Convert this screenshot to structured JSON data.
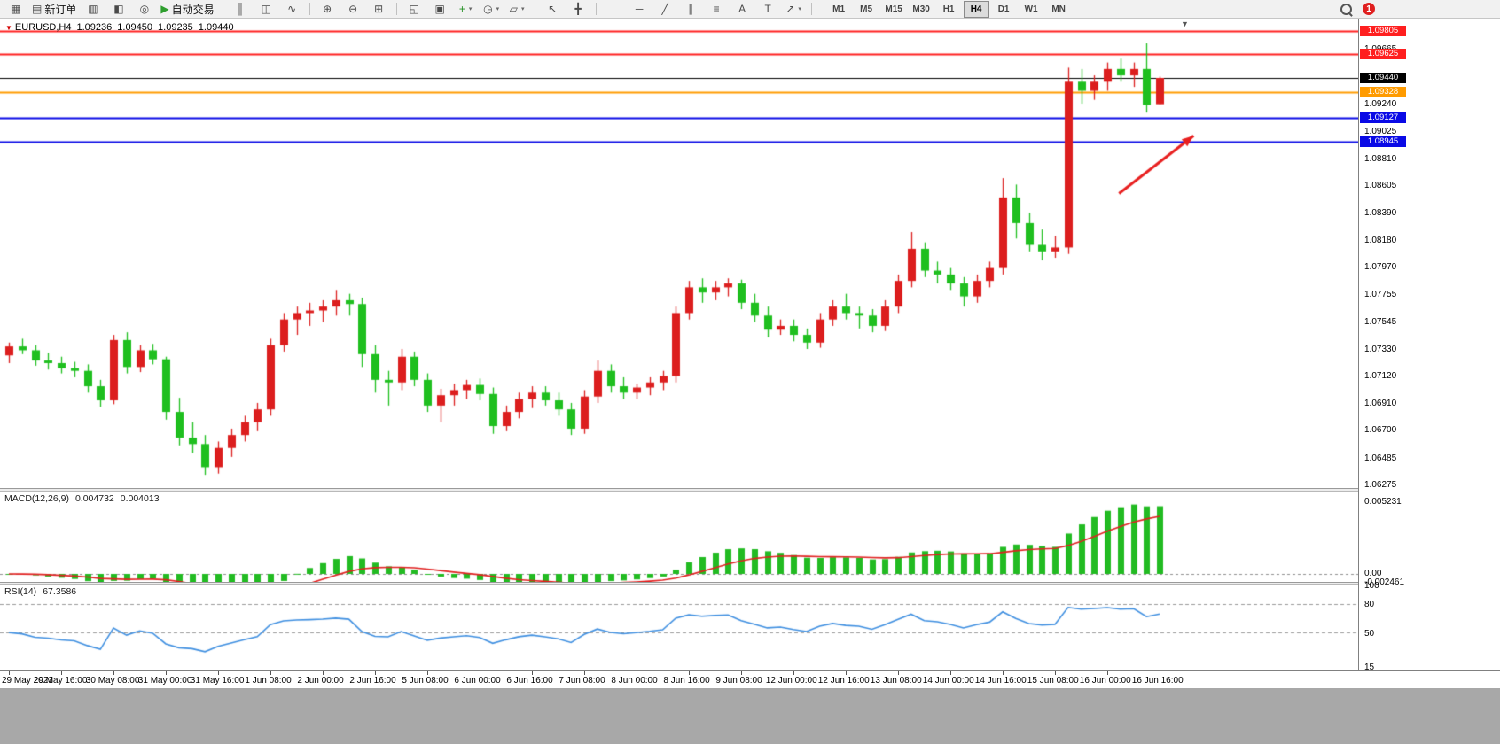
{
  "toolbar": {
    "items": [
      {
        "type": "icon",
        "name": "new-chart-icon",
        "glyph": "▦"
      },
      {
        "type": "button",
        "name": "new-order-button",
        "glyph": "▤",
        "label": "新订单"
      },
      {
        "type": "icon",
        "name": "market-watch-icon",
        "glyph": "▥"
      },
      {
        "type": "icon",
        "name": "data-window-icon",
        "glyph": "◧"
      },
      {
        "type": "icon",
        "name": "navigator-icon",
        "glyph": "◎"
      },
      {
        "type": "button",
        "name": "autotrade-button",
        "glyph": "▶",
        "glyph_color": "#2e9e2e",
        "label": "自动交易"
      },
      {
        "type": "sep"
      },
      {
        "type": "icon",
        "name": "bar-chart-icon",
        "glyph": "║"
      },
      {
        "type": "icon",
        "name": "candlestick-chart-icon",
        "glyph": "◫"
      },
      {
        "type": "icon",
        "name": "line-chart-icon",
        "glyph": "∿"
      },
      {
        "type": "sep"
      },
      {
        "type": "icon",
        "name": "zoom-in-icon",
        "glyph": "⊕"
      },
      {
        "type": "icon",
        "name": "zoom-out-icon",
        "glyph": "⊖"
      },
      {
        "type": "icon",
        "name": "tile-windows-icon",
        "glyph": "⊞"
      },
      {
        "type": "sep"
      },
      {
        "type": "icon",
        "name": "cascade-windows-icon",
        "glyph": "◱"
      },
      {
        "type": "icon",
        "name": "arrange-windows-icon",
        "glyph": "▣"
      },
      {
        "type": "icon",
        "name": "indicators-icon",
        "glyph": "+",
        "glyph_color": "#1e8e1e",
        "caret": true
      },
      {
        "type": "icon",
        "name": "periods-icon",
        "glyph": "◷",
        "caret": true
      },
      {
        "type": "icon",
        "name": "templates-icon",
        "glyph": "▱",
        "caret": true
      },
      {
        "type": "sep"
      },
      {
        "type": "icon",
        "name": "cursor-icon",
        "glyph": "↖"
      },
      {
        "type": "icon",
        "name": "crosshair-icon",
        "glyph": "╋"
      },
      {
        "type": "sep"
      },
      {
        "type": "icon",
        "name": "vertical-line-icon",
        "glyph": "│"
      },
      {
        "type": "icon",
        "name": "horizontal-line-icon",
        "glyph": "─"
      },
      {
        "type": "icon",
        "name": "trendline-icon",
        "glyph": "╱"
      },
      {
        "type": "icon",
        "name": "channel-icon",
        "glyph": "∥"
      },
      {
        "type": "icon",
        "name": "fibonacci-icon",
        "glyph": "≡"
      },
      {
        "type": "icon",
        "name": "text-icon",
        "glyph": "A"
      },
      {
        "type": "icon",
        "name": "text-label-icon",
        "glyph": "T"
      },
      {
        "type": "icon",
        "name": "arrows-icon",
        "glyph": "↗",
        "caret": true
      },
      {
        "type": "sep"
      }
    ],
    "timeframes": [
      "M1",
      "M5",
      "M15",
      "M30",
      "H1",
      "H4",
      "D1",
      "W1",
      "MN"
    ],
    "active_timeframe": "H4",
    "notification_count": "1"
  },
  "chart": {
    "symbol": "EURUSD,H4",
    "open": "1.09236",
    "high": "1.09450",
    "low": "1.09235",
    "close": "1.09440",
    "symbol_marker": "▼",
    "shift_marker": "▼"
  },
  "chart_data": {
    "type": "candlestick",
    "symbol": "EURUSD",
    "timeframe": "H4",
    "candles": [
      [
        1.0728,
        1.0738,
        1.0722,
        1.0735
      ],
      [
        1.0735,
        1.0741,
        1.0729,
        1.0732
      ],
      [
        1.0732,
        1.0736,
        1.072,
        1.0724
      ],
      [
        1.0724,
        1.073,
        1.0717,
        1.0722
      ],
      [
        1.0722,
        1.0727,
        1.0714,
        1.0718
      ],
      [
        1.0718,
        1.0723,
        1.0711,
        1.0716
      ],
      [
        1.0716,
        1.0721,
        1.0699,
        1.0704
      ],
      [
        1.0704,
        1.0709,
        1.0688,
        1.0693
      ],
      [
        1.0693,
        1.0744,
        1.069,
        1.074
      ],
      [
        1.074,
        1.0746,
        1.0714,
        1.0719
      ],
      [
        1.0719,
        1.0736,
        1.0715,
        1.0732
      ],
      [
        1.0732,
        1.0737,
        1.0721,
        1.0725
      ],
      [
        1.0725,
        1.0727,
        1.0678,
        1.0684
      ],
      [
        1.0684,
        1.0695,
        1.0658,
        1.0664
      ],
      [
        1.0664,
        1.0676,
        1.0652,
        1.0659
      ],
      [
        1.0659,
        1.0666,
        1.0635,
        1.0641
      ],
      [
        1.0641,
        1.0661,
        1.0636,
        1.0656
      ],
      [
        1.0656,
        1.0671,
        1.0649,
        1.0666
      ],
      [
        1.0666,
        1.0681,
        1.0661,
        1.0676
      ],
      [
        1.0676,
        1.0691,
        1.0669,
        1.0686
      ],
      [
        1.0686,
        1.0741,
        1.0681,
        1.0736
      ],
      [
        1.0736,
        1.0761,
        1.0731,
        1.0756
      ],
      [
        1.0756,
        1.0766,
        1.0744,
        1.0761
      ],
      [
        1.0761,
        1.0769,
        1.0751,
        1.0763
      ],
      [
        1.0763,
        1.0771,
        1.0754,
        1.0766
      ],
      [
        1.0766,
        1.0779,
        1.0759,
        1.0771
      ],
      [
        1.0771,
        1.0776,
        1.0759,
        1.0768
      ],
      [
        1.0768,
        1.0773,
        1.0719,
        1.0729
      ],
      [
        1.0729,
        1.0736,
        1.0699,
        1.0709
      ],
      [
        1.0709,
        1.0716,
        1.0689,
        1.0707
      ],
      [
        1.0707,
        1.0733,
        1.0701,
        1.0727
      ],
      [
        1.0727,
        1.0731,
        1.0704,
        1.0709
      ],
      [
        1.0709,
        1.0714,
        1.0684,
        1.0689
      ],
      [
        1.0689,
        1.0702,
        1.0676,
        1.0697
      ],
      [
        1.0697,
        1.0706,
        1.0689,
        1.0701
      ],
      [
        1.0701,
        1.0709,
        1.0694,
        1.0705
      ],
      [
        1.0705,
        1.071,
        1.0693,
        1.0698
      ],
      [
        1.0698,
        1.0703,
        1.0667,
        1.0673
      ],
      [
        1.0673,
        1.0689,
        1.0669,
        1.0684
      ],
      [
        1.0684,
        1.0699,
        1.0679,
        1.0694
      ],
      [
        1.0694,
        1.0704,
        1.0687,
        1.0699
      ],
      [
        1.0699,
        1.0704,
        1.0689,
        1.0693
      ],
      [
        1.0693,
        1.0699,
        1.0681,
        1.0686
      ],
      [
        1.0686,
        1.0691,
        1.0666,
        1.0671
      ],
      [
        1.0671,
        1.0701,
        1.0667,
        1.0696
      ],
      [
        1.0696,
        1.0724,
        1.0691,
        1.0716
      ],
      [
        1.0716,
        1.0721,
        1.0699,
        1.0704
      ],
      [
        1.0704,
        1.0711,
        1.0694,
        1.0699
      ],
      [
        1.0699,
        1.0706,
        1.0694,
        1.0703
      ],
      [
        1.0703,
        1.0711,
        1.0697,
        1.0707
      ],
      [
        1.0707,
        1.0716,
        1.0701,
        1.0712
      ],
      [
        1.0712,
        1.0766,
        1.0707,
        1.0761
      ],
      [
        1.0761,
        1.0786,
        1.0756,
        1.0781
      ],
      [
        1.0781,
        1.0788,
        1.0769,
        1.0777
      ],
      [
        1.0777,
        1.0786,
        1.0771,
        1.0781
      ],
      [
        1.0781,
        1.0788,
        1.0774,
        1.0784
      ],
      [
        1.0784,
        1.0787,
        1.0764,
        1.0769
      ],
      [
        1.0769,
        1.0776,
        1.0754,
        1.0759
      ],
      [
        1.0759,
        1.0766,
        1.0742,
        1.0748
      ],
      [
        1.0748,
        1.0756,
        1.0744,
        1.0751
      ],
      [
        1.0751,
        1.0756,
        1.0739,
        1.0744
      ],
      [
        1.0744,
        1.0749,
        1.0733,
        1.0738
      ],
      [
        1.0738,
        1.0761,
        1.0734,
        1.0756
      ],
      [
        1.0756,
        1.0771,
        1.0751,
        1.0766
      ],
      [
        1.0766,
        1.0776,
        1.0756,
        1.0761
      ],
      [
        1.0761,
        1.0766,
        1.0749,
        1.0759
      ],
      [
        1.0759,
        1.0764,
        1.0746,
        1.0751
      ],
      [
        1.0751,
        1.0771,
        1.0747,
        1.0766
      ],
      [
        1.0766,
        1.0791,
        1.0761,
        1.0786
      ],
      [
        1.0786,
        1.0824,
        1.0781,
        1.0811
      ],
      [
        1.0811,
        1.0816,
        1.0789,
        1.0794
      ],
      [
        1.0794,
        1.0801,
        1.0784,
        1.0791
      ],
      [
        1.0791,
        1.0796,
        1.0779,
        1.0784
      ],
      [
        1.0784,
        1.0789,
        1.0766,
        1.0774
      ],
      [
        1.0774,
        1.0791,
        1.0769,
        1.0786
      ],
      [
        1.0786,
        1.0801,
        1.0781,
        1.0796
      ],
      [
        1.0796,
        1.0866,
        1.0791,
        1.0851
      ],
      [
        1.0851,
        1.0861,
        1.0819,
        1.0831
      ],
      [
        1.0831,
        1.0839,
        1.0809,
        1.0814
      ],
      [
        1.0814,
        1.0826,
        1.0802,
        1.0809
      ],
      [
        1.0809,
        1.0821,
        1.0804,
        1.0812
      ],
      [
        1.0812,
        1.0952,
        1.0807,
        1.0941
      ],
      [
        1.0941,
        1.0951,
        1.0924,
        1.0934
      ],
      [
        1.0934,
        1.0946,
        1.0927,
        1.0941
      ],
      [
        1.0941,
        1.0956,
        1.0934,
        1.0951
      ],
      [
        1.0951,
        1.0959,
        1.0941,
        1.0946
      ],
      [
        1.0946,
        1.0956,
        1.0937,
        1.0951
      ],
      [
        1.0951,
        1.0971,
        1.0917,
        1.0923
      ],
      [
        1.09236,
        1.0945,
        1.09235,
        1.0944
      ]
    ],
    "x_labels": [
      [
        0,
        "29 May 2023"
      ],
      [
        4,
        "29 May 16:00"
      ],
      [
        8,
        "30 May 08:00"
      ],
      [
        12,
        "31 May 00:00"
      ],
      [
        16,
        "31 May 16:00"
      ],
      [
        20,
        "1 Jun 08:00"
      ],
      [
        24,
        "2 Jun 00:00"
      ],
      [
        28,
        "2 Jun 16:00"
      ],
      [
        32,
        "5 Jun 08:00"
      ],
      [
        36,
        "6 Jun 00:00"
      ],
      [
        40,
        "6 Jun 16:00"
      ],
      [
        44,
        "7 Jun 08:00"
      ],
      [
        48,
        "8 Jun 00:00"
      ],
      [
        52,
        "8 Jun 16:00"
      ],
      [
        56,
        "9 Jun 08:00"
      ],
      [
        60,
        "12 Jun 00:00"
      ],
      [
        64,
        "12 Jun 16:00"
      ],
      [
        68,
        "13 Jun 08:00"
      ],
      [
        72,
        "14 Jun 00:00"
      ],
      [
        76,
        "14 Jun 16:00"
      ],
      [
        80,
        "15 Jun 08:00"
      ],
      [
        84,
        "16 Jun 00:00"
      ],
      [
        88,
        "16 Jun 16:00"
      ]
    ],
    "y_ticks": [
      "1.09665",
      "1.09450",
      "1.09240",
      "1.09025",
      "1.08810",
      "1.08605",
      "1.08390",
      "1.08180",
      "1.07970",
      "1.07755",
      "1.07545",
      "1.07330",
      "1.07120",
      "1.06910",
      "1.06700",
      "1.06485",
      "1.06275"
    ],
    "hlines": [
      {
        "price": 1.09805,
        "label": "1.09805",
        "color": "#ff1f1f"
      },
      {
        "price": 1.09625,
        "label": "1.09625",
        "color": "#ff1f1f"
      },
      {
        "price": 1.09328,
        "label": "1.09328",
        "color": "#ff9b00"
      },
      {
        "price": 1.09127,
        "label": "1.09127",
        "color": "#0a0ae6"
      },
      {
        "price": 1.08945,
        "label": "1.08945",
        "color": "#0a0ae6"
      }
    ],
    "current_price": {
      "price": 1.0944,
      "label": "1.09440",
      "color": "#000000"
    },
    "arrow": {
      "from_index": 84.9,
      "from_price": 1.0854,
      "to_index": 90.6,
      "to_price": 1.0899
    },
    "macd": {
      "label": "MACD(12,26,9)",
      "value_main": "0.004732",
      "value_signal": "0.004013",
      "fast": 12,
      "slow": 26,
      "signal": 9,
      "axis_labels": [
        "0.005231",
        "0.00",
        "-0.002461"
      ]
    },
    "rsi": {
      "label": "RSI(14)",
      "value": "67.3586",
      "period": 14,
      "axis_labels": [
        "100",
        "80",
        "50",
        "15"
      ],
      "levels": [
        80,
        50
      ]
    },
    "colors": {
      "bull": "#dc1e1e",
      "bear": "#1fbf1f",
      "macd_histogram": "#22bb22",
      "macd_signal": "#e02020",
      "rsi_line": "#3f8fe0",
      "arrow": "#e82020"
    }
  }
}
